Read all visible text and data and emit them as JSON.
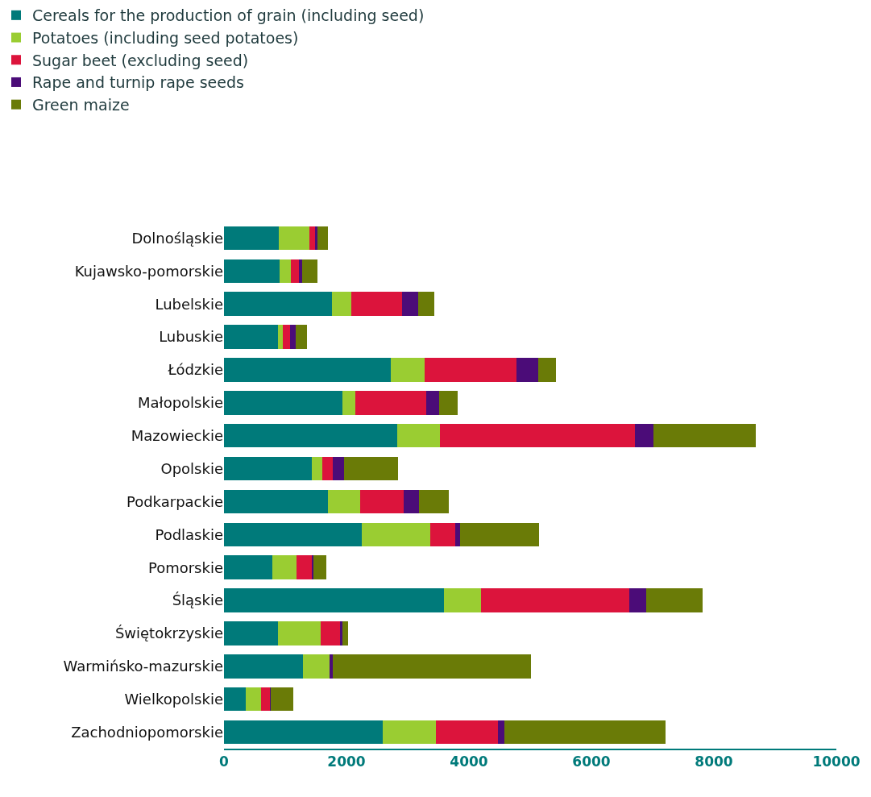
{
  "chart_data": {
    "type": "bar",
    "orientation": "horizontal",
    "stacked": true,
    "categories": [
      "Dolnośląskie",
      "Kujawsko-pomorskie",
      "Lubelskie",
      "Lubuskie",
      "Łódzkie",
      "Małopolskie",
      "Mazowieckie",
      "Opolskie",
      "Podkarpackie",
      "Podlaskie",
      "Pomorskie",
      "Śląskie",
      "Świętokrzyskie",
      "Warmińsko-mazurskie",
      "Wielkopolskie",
      "Zachodniopomorskie"
    ],
    "series": [
      {
        "name": "Cereals for the production of grain (including seed)",
        "color": "#007a7a",
        "values": [
          890,
          910,
          1760,
          880,
          2720,
          1940,
          2830,
          1430,
          1700,
          2250,
          790,
          3590,
          880,
          1290,
          360,
          2590
        ]
      },
      {
        "name": "Potatoes (including seed potatoes)",
        "color": "#9acd32",
        "values": [
          510,
          180,
          320,
          80,
          550,
          210,
          700,
          180,
          530,
          1120,
          390,
          610,
          700,
          430,
          250,
          870
        ]
      },
      {
        "name": "Sugar beet (excluding seed)",
        "color": "#dc143c",
        "values": [
          90,
          130,
          830,
          120,
          1500,
          1150,
          3180,
          170,
          700,
          410,
          250,
          2420,
          320,
          0,
          140,
          1010
        ]
      },
      {
        "name": "Rape and turnip rape seeds",
        "color": "#4b0c78",
        "values": [
          30,
          50,
          260,
          90,
          360,
          210,
          300,
          180,
          250,
          70,
          30,
          280,
          40,
          50,
          10,
          110
        ]
      },
      {
        "name": "Green maize",
        "color": "#6a7b07",
        "values": [
          180,
          260,
          260,
          180,
          290,
          300,
          1680,
          880,
          490,
          1300,
          210,
          920,
          80,
          3240,
          370,
          2630
        ]
      }
    ],
    "xlim": [
      0,
      10000
    ],
    "xticks": [
      0,
      2000,
      4000,
      6000,
      8000,
      10000
    ],
    "grid": false,
    "legend": "top left"
  }
}
